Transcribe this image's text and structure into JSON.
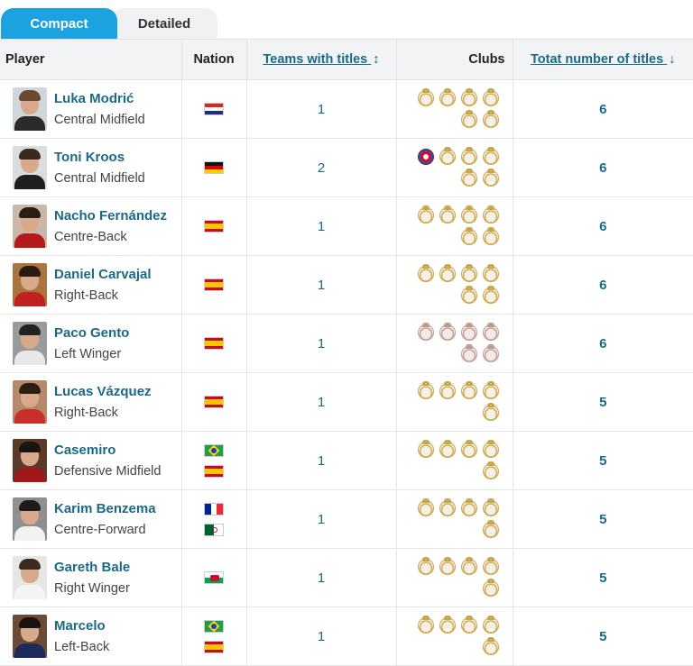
{
  "tabs": [
    {
      "label": "Compact",
      "active": true
    },
    {
      "label": "Detailed",
      "active": false
    }
  ],
  "columns": {
    "player": "Player",
    "nation": "Nation",
    "teams": "Teams with titles",
    "teams_sort_icon": "↕",
    "clubs": "Clubs",
    "total": "Totat number of titles",
    "total_sort_icon": "↓"
  },
  "rows": [
    {
      "name": "Luka Modrić",
      "position": "Central Midfield",
      "nations": [
        "croatia-flag"
      ],
      "teams": "1",
      "clubs": [
        "real-madrid-crest",
        "real-madrid-crest",
        "real-madrid-crest",
        "real-madrid-crest",
        "real-madrid-crest",
        "real-madrid-crest"
      ],
      "total": "6",
      "avatar": {
        "hair": "#6b4a2f",
        "body": "#2b2b2b",
        "bg": "#cfd6dc"
      }
    },
    {
      "name": "Toni Kroos",
      "position": "Central Midfield",
      "nations": [
        "germany-flag"
      ],
      "teams": "2",
      "clubs": [
        "bayern-munich-crest",
        "real-madrid-crest",
        "real-madrid-crest",
        "real-madrid-crest",
        "real-madrid-crest",
        "real-madrid-crest"
      ],
      "total": "6",
      "avatar": {
        "hair": "#3a2a1e",
        "body": "#1f1f1f",
        "bg": "#d9dde0"
      }
    },
    {
      "name": "Nacho Fernández",
      "position": "Centre-Back",
      "nations": [
        "spain-flag"
      ],
      "teams": "1",
      "clubs": [
        "real-madrid-crest",
        "real-madrid-crest",
        "real-madrid-crest",
        "real-madrid-crest",
        "real-madrid-crest",
        "real-madrid-crest"
      ],
      "total": "6",
      "avatar": {
        "hair": "#2b1d14",
        "body": "#b31b1b",
        "bg": "#c9b8a8"
      }
    },
    {
      "name": "Daniel Carvajal",
      "position": "Right-Back",
      "nations": [
        "spain-flag"
      ],
      "teams": "1",
      "clubs": [
        "real-madrid-crest",
        "real-madrid-crest",
        "real-madrid-crest",
        "real-madrid-crest",
        "real-madrid-crest",
        "real-madrid-crest"
      ],
      "total": "6",
      "avatar": {
        "hair": "#2a1a10",
        "body": "#c0201f",
        "bg": "#a8743f"
      }
    },
    {
      "name": "Paco Gento",
      "position": "Left Winger",
      "nations": [
        "spain-flag"
      ],
      "teams": "1",
      "clubs": [
        "real-madrid-historic-crest",
        "real-madrid-historic-crest",
        "real-madrid-historic-crest",
        "real-madrid-historic-crest",
        "real-madrid-historic-crest",
        "real-madrid-historic-crest"
      ],
      "total": "6",
      "avatar": {
        "hair": "#222222",
        "body": "#e8e8e8",
        "bg": "#9a9a9a"
      }
    },
    {
      "name": "Lucas Vázquez",
      "position": "Right-Back",
      "nations": [
        "spain-flag"
      ],
      "teams": "1",
      "clubs": [
        "real-madrid-crest",
        "real-madrid-crest",
        "real-madrid-crest",
        "real-madrid-crest",
        "real-madrid-crest"
      ],
      "total": "5",
      "avatar": {
        "hair": "#2d1e14",
        "body": "#c9302c",
        "bg": "#b58a6a"
      }
    },
    {
      "name": "Casemiro",
      "position": "Defensive Midfield",
      "nations": [
        "brazil-flag",
        "spain-flag"
      ],
      "teams": "1",
      "clubs": [
        "real-madrid-crest",
        "real-madrid-crest",
        "real-madrid-crest",
        "real-madrid-crest",
        "real-madrid-crest"
      ],
      "total": "5",
      "avatar": {
        "hair": "#1b1411",
        "body": "#a3161a",
        "bg": "#5a3b2a"
      }
    },
    {
      "name": "Karim Benzema",
      "position": "Centre-Forward",
      "nations": [
        "france-flag",
        "algeria-flag"
      ],
      "teams": "1",
      "clubs": [
        "real-madrid-crest",
        "real-madrid-crest",
        "real-madrid-crest",
        "real-madrid-crest",
        "real-madrid-crest"
      ],
      "total": "5",
      "avatar": {
        "hair": "#1c1c1c",
        "body": "#f2f2f2",
        "bg": "#8f8f8f"
      }
    },
    {
      "name": "Gareth Bale",
      "position": "Right Winger",
      "nations": [
        "wales-flag"
      ],
      "teams": "1",
      "clubs": [
        "real-madrid-crest",
        "real-madrid-crest",
        "real-madrid-crest",
        "real-madrid-crest",
        "real-madrid-crest"
      ],
      "total": "5",
      "avatar": {
        "hair": "#3b2a1d",
        "body": "#f4f4f4",
        "bg": "#e6e6e6"
      }
    },
    {
      "name": "Marcelo",
      "position": "Left-Back",
      "nations": [
        "brazil-flag",
        "spain-flag"
      ],
      "teams": "1",
      "clubs": [
        "real-madrid-crest",
        "real-madrid-crest",
        "real-madrid-crest",
        "real-madrid-crest",
        "real-madrid-crest"
      ],
      "total": "5",
      "avatar": {
        "hair": "#1a1410",
        "body": "#1e2a5a",
        "bg": "#6b4a36"
      }
    }
  ],
  "colors": {
    "tab_active": "#1aa3e0",
    "link": "#1a6a86",
    "header_bg": "#f2f3f4"
  }
}
